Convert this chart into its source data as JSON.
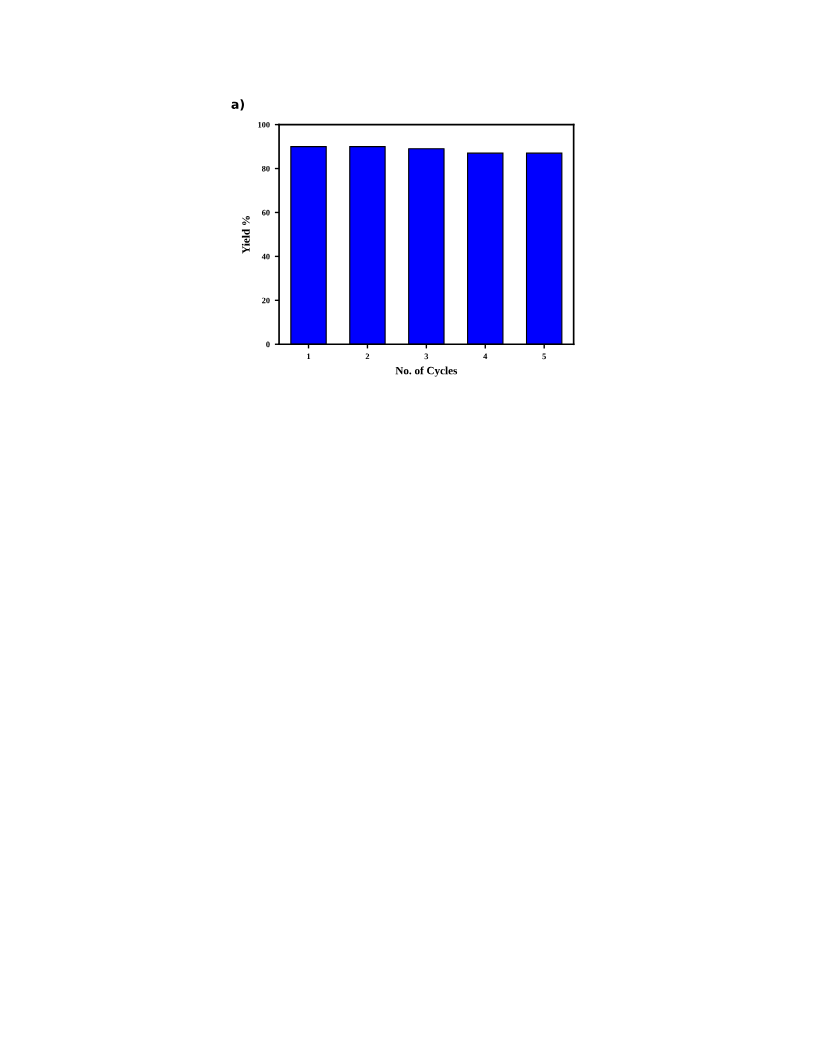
{
  "chart_data": {
    "type": "bar",
    "title": "a)",
    "xlabel": "No. of Cycles",
    "ylabel": "Yield %",
    "categories": [
      "1",
      "2",
      "3",
      "4",
      "5"
    ],
    "values": [
      90,
      90,
      89,
      87,
      87
    ],
    "color": "#0000ff",
    "ylim": [
      0,
      100
    ],
    "yticks": [
      0,
      20,
      40,
      60,
      80,
      100
    ],
    "grid": false
  }
}
